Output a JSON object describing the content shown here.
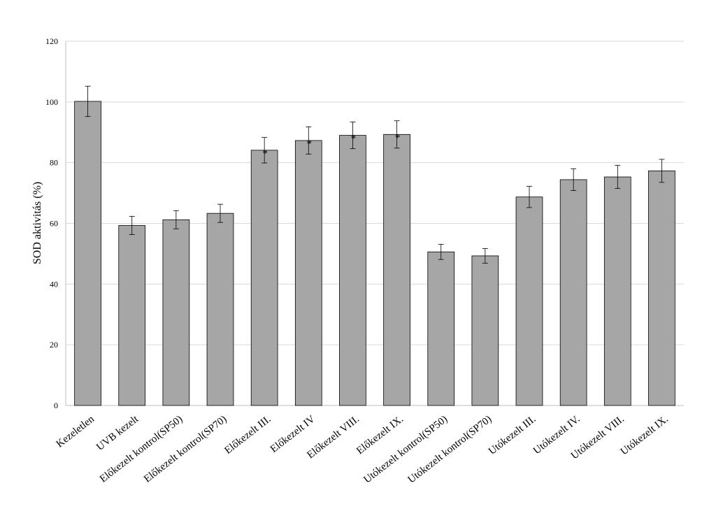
{
  "chart_data": {
    "type": "bar",
    "title": "",
    "xlabel": "",
    "ylabel": "SOD aktivitás (%)",
    "ylim": [
      0,
      120
    ],
    "yticks": [
      0,
      20,
      40,
      60,
      80,
      100,
      120
    ],
    "grid": true,
    "bar_color": "#a6a6a6",
    "categories": [
      "Kezeletlen",
      "UVB kezelt",
      "Előkezelt kontrol(SP50)",
      "Előkezelt kontrol(SP70)",
      "Előkezelt III.",
      "Előkezelt IV",
      "Előkezelt VIII.",
      "Előkezelt IX.",
      "Utókezelt kontrol(SP50)",
      "Utókezelt kontrol(SP70)",
      "Utókezelt III.",
      "Utókezelt IV.",
      "Utókezelt VIII.",
      "Utókezelt IX."
    ],
    "values": [
      100.2,
      59.3,
      61.2,
      63.3,
      84.1,
      87.3,
      89.0,
      89.3,
      50.6,
      49.3,
      68.7,
      74.4,
      75.3,
      77.3
    ],
    "errors": [
      5.0,
      3.0,
      3.0,
      3.0,
      4.2,
      4.5,
      4.4,
      4.5,
      2.5,
      2.4,
      3.5,
      3.6,
      3.8,
      3.8
    ],
    "significance": [
      "",
      "",
      "",
      "",
      "*",
      "*",
      "*",
      "*",
      "",
      "",
      "",
      "",
      "",
      ""
    ]
  }
}
